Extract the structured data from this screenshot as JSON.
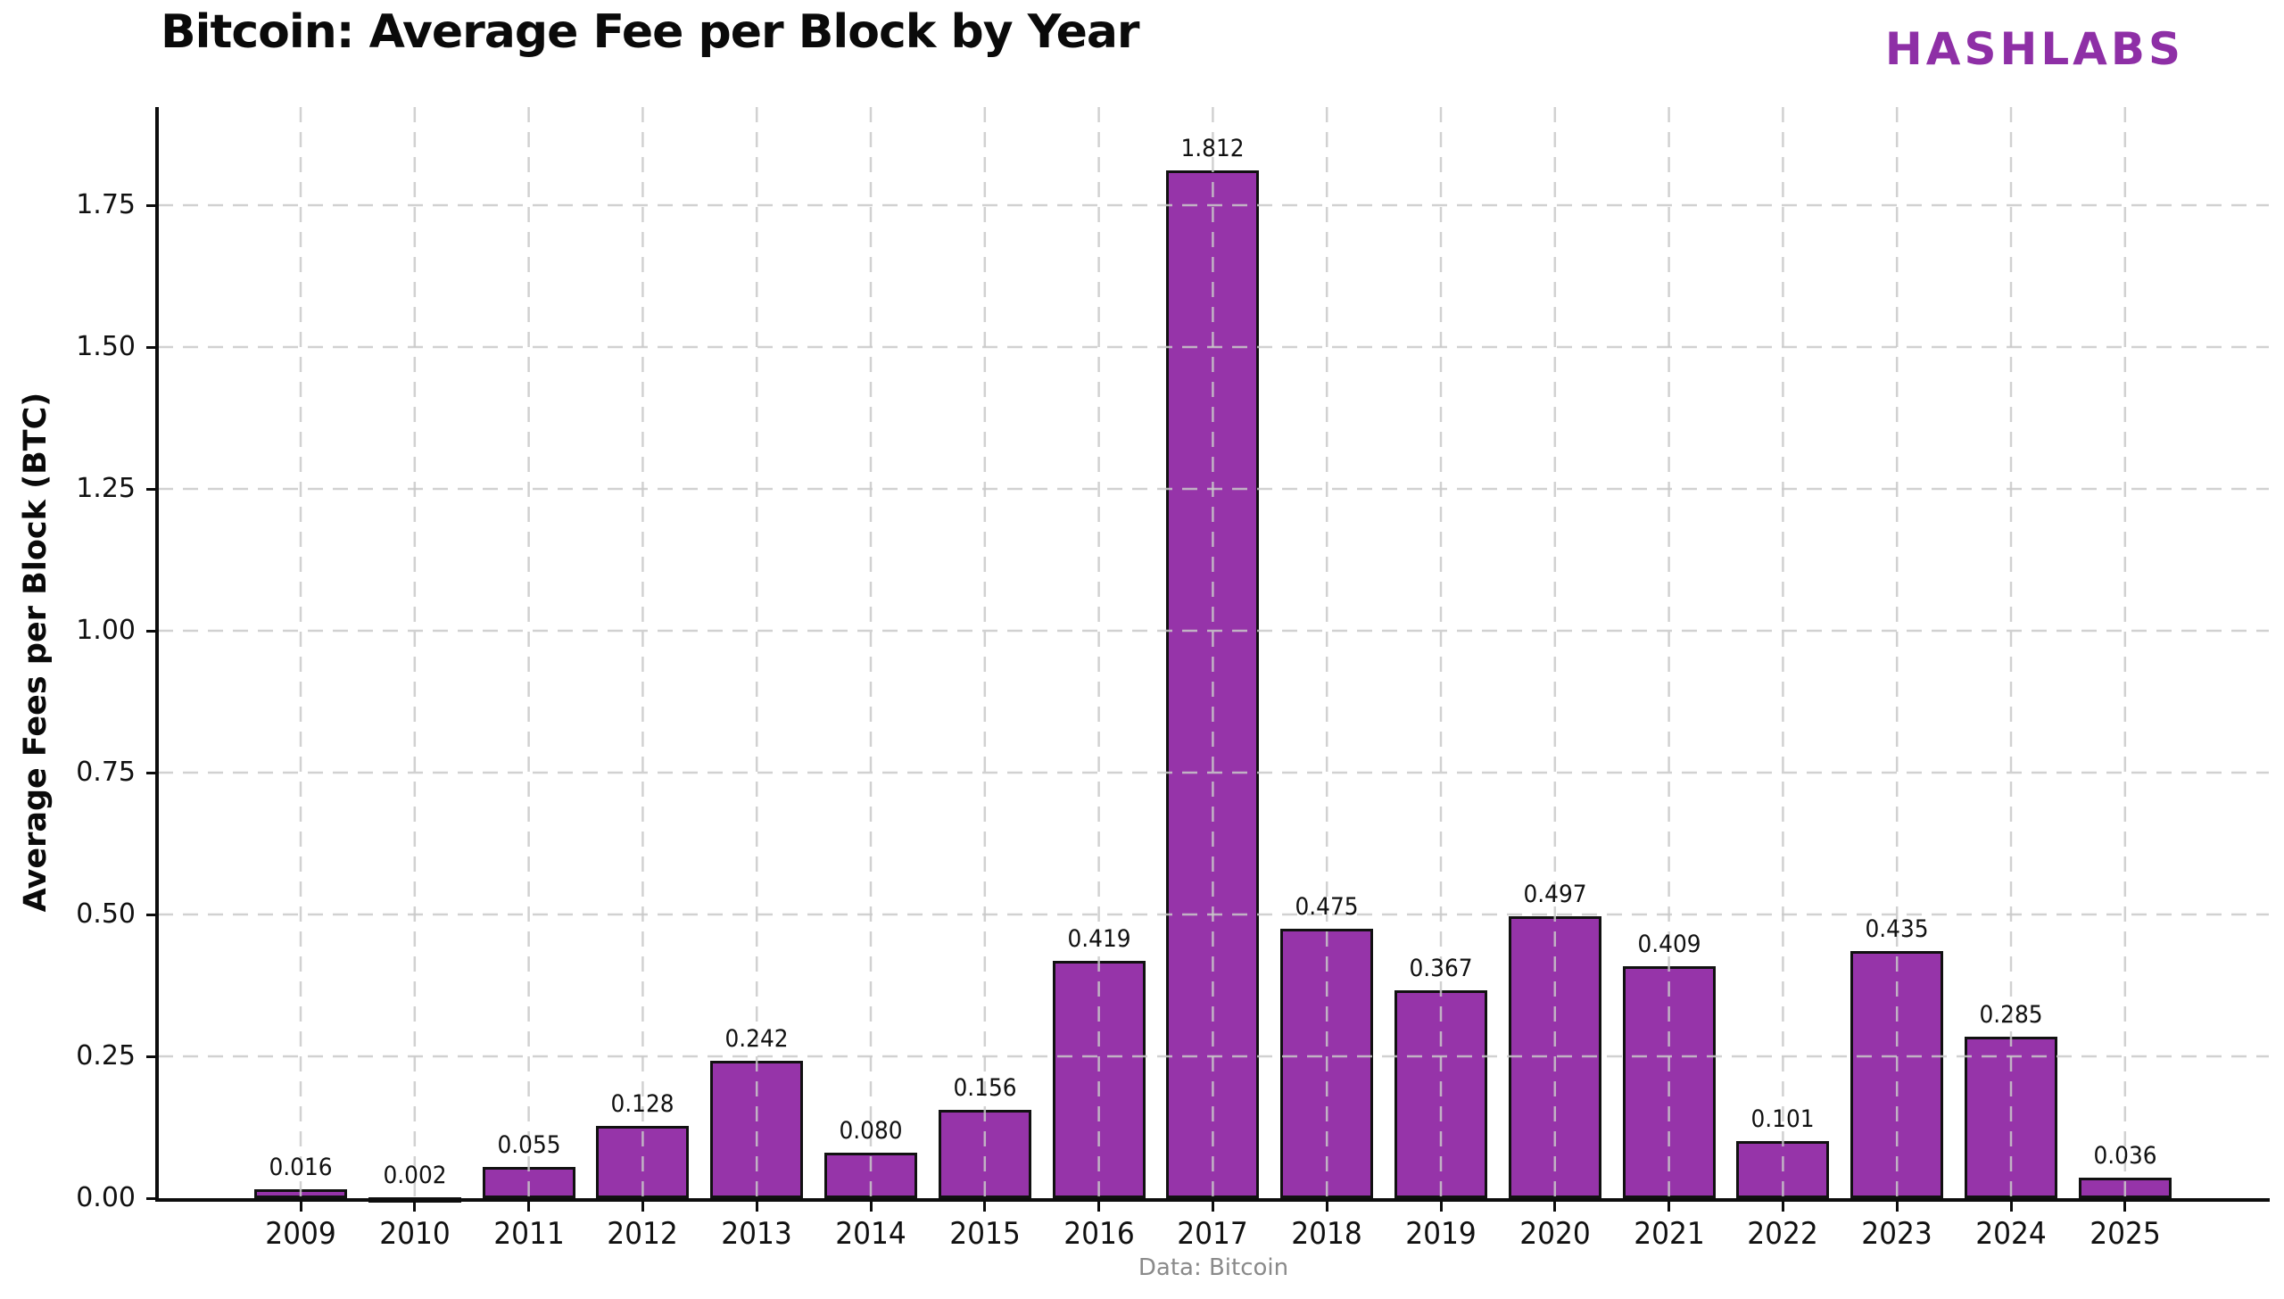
{
  "header": {
    "title": "Bitcoin: Average Fee per Block by Year",
    "logo": "HASHLABS"
  },
  "chart_data": {
    "type": "bar",
    "title": "Bitcoin: Average Fee per Block by Year",
    "categories": [
      "2009",
      "2010",
      "2011",
      "2012",
      "2013",
      "2014",
      "2015",
      "2016",
      "2017",
      "2018",
      "2019",
      "2020",
      "2021",
      "2022",
      "2023",
      "2024",
      "2025"
    ],
    "values": [
      0.016,
      0.002,
      0.055,
      0.128,
      0.242,
      0.08,
      0.156,
      0.419,
      1.812,
      0.475,
      0.367,
      0.497,
      0.409,
      0.101,
      0.435,
      0.285,
      0.036
    ],
    "value_labels": [
      "0.016",
      "0.002",
      "0.055",
      "0.128",
      "0.242",
      "0.080",
      "0.156",
      "0.419",
      "1.812",
      "0.475",
      "0.367",
      "0.497",
      "0.409",
      "0.101",
      "0.435",
      "0.285",
      "0.036"
    ],
    "xlabel": "",
    "ylabel": "Average Fees per Block (BTC)",
    "ylim": [
      0,
      1.92
    ],
    "y_ticks": [
      "0.00",
      "0.25",
      "0.50",
      "0.75",
      "1.00",
      "1.25",
      "1.50",
      "1.75"
    ],
    "y_tick_values": [
      0.0,
      0.25,
      0.5,
      0.75,
      1.0,
      1.25,
      1.5,
      1.75
    ],
    "grid": "dashed gridlines on both axes, light gray, drawn over bars",
    "legend": "none",
    "source_note": "Data: Bitcoin",
    "colors": {
      "bar_fill": "#9634a9",
      "bar_edge": "#111111",
      "logo": "#8e2fa6",
      "grid": "#c9c9c9",
      "source_text": "#8a8a8a"
    }
  }
}
